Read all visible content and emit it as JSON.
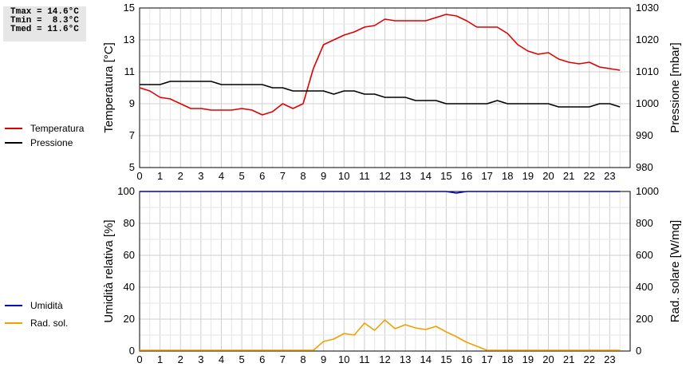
{
  "stats": {
    "tmax": "Tmax = 14.6°C",
    "tmin": "Tmin =  8.3°C",
    "tmed": "Tmed = 11.6°C"
  },
  "legend_top": [
    {
      "label": "Temperatura",
      "color": "#e00000"
    },
    {
      "label": "Pressione",
      "color": "#000000"
    }
  ],
  "legend_bottom": [
    {
      "label": "Umidità",
      "color": "#0000c0"
    },
    {
      "label": "Rad. sol.",
      "color": "#f0a000"
    }
  ],
  "chart_data": [
    {
      "type": "line",
      "xlim": [
        0,
        24
      ],
      "x_ticks": [
        0,
        1,
        2,
        3,
        4,
        5,
        6,
        7,
        8,
        9,
        10,
        11,
        12,
        13,
        14,
        15,
        16,
        17,
        18,
        19,
        20,
        21,
        22,
        23
      ],
      "ylabel": "Temperatura [°C]",
      "ylabel_right": "Pressione [mbar]",
      "ylim": [
        5,
        15
      ],
      "ylim_right": [
        980,
        1030
      ],
      "y_ticks": [
        5,
        7,
        9,
        11,
        13,
        15
      ],
      "y_ticks_right": [
        980,
        990,
        1000,
        1010,
        1020,
        1030
      ],
      "grid": true,
      "series": [
        {
          "name": "Temperatura",
          "axis": "left",
          "color": "#e00000",
          "x": [
            0,
            0.5,
            1,
            1.5,
            2,
            2.5,
            3,
            3.5,
            4,
            4.5,
            5,
            5.5,
            6,
            6.5,
            7,
            7.5,
            8,
            8.5,
            9,
            9.5,
            10,
            10.5,
            11,
            11.5,
            12,
            12.5,
            13,
            13.5,
            14,
            14.5,
            15,
            15.5,
            16,
            16.5,
            17,
            17.5,
            18,
            18.5,
            19,
            19.5,
            20,
            20.5,
            21,
            21.5,
            22,
            22.5,
            23,
            23.5
          ],
          "values": [
            10.0,
            9.8,
            9.4,
            9.3,
            9.0,
            8.7,
            8.7,
            8.6,
            8.6,
            8.6,
            8.7,
            8.6,
            8.3,
            8.5,
            9.0,
            8.7,
            9.0,
            11.2,
            12.7,
            13.0,
            13.3,
            13.5,
            13.8,
            13.9,
            14.3,
            14.2,
            14.2,
            14.2,
            14.2,
            14.4,
            14.6,
            14.5,
            14.2,
            13.8,
            13.8,
            13.8,
            13.4,
            12.7,
            12.3,
            12.1,
            12.2,
            11.8,
            11.6,
            11.5,
            11.6,
            11.3,
            11.2,
            11.1
          ]
        },
        {
          "name": "Pressione",
          "axis": "right",
          "color": "#000000",
          "x": [
            0,
            0.5,
            1,
            1.5,
            2,
            2.5,
            3,
            3.5,
            4,
            4.5,
            5,
            5.5,
            6,
            6.5,
            7,
            7.5,
            8,
            8.5,
            9,
            9.5,
            10,
            10.5,
            11,
            11.5,
            12,
            12.5,
            13,
            13.5,
            14,
            14.5,
            15,
            15.5,
            16,
            16.5,
            17,
            17.5,
            18,
            18.5,
            19,
            19.5,
            20,
            20.5,
            21,
            21.5,
            22,
            22.5,
            23,
            23.5
          ],
          "values": [
            1006,
            1006,
            1006,
            1007,
            1007,
            1007,
            1007,
            1007,
            1006,
            1006,
            1006,
            1006,
            1006,
            1005,
            1005,
            1004,
            1004,
            1004,
            1004,
            1003,
            1004,
            1004,
            1003,
            1003,
            1002,
            1002,
            1002,
            1001,
            1001,
            1001,
            1000,
            1000,
            1000,
            1000,
            1000,
            1001,
            1000,
            1000,
            1000,
            1000,
            1000,
            999,
            999,
            999,
            999,
            1000,
            1000,
            999
          ]
        }
      ]
    },
    {
      "type": "line",
      "xlim": [
        0,
        24
      ],
      "x_ticks": [
        0,
        1,
        2,
        3,
        4,
        5,
        6,
        7,
        8,
        9,
        10,
        11,
        12,
        13,
        14,
        15,
        16,
        17,
        18,
        19,
        20,
        21,
        22,
        23
      ],
      "ylabel": "Umidità relativa [%]",
      "ylabel_right": "Rad. solare [W/mq]",
      "ylim": [
        0,
        100
      ],
      "ylim_right": [
        0,
        1000
      ],
      "y_ticks": [
        0,
        20,
        40,
        60,
        80,
        100
      ],
      "y_ticks_right": [
        0,
        200,
        400,
        600,
        800,
        1000
      ],
      "grid": true,
      "series": [
        {
          "name": "Umidità",
          "axis": "left",
          "color": "#0000c0",
          "x": [
            0,
            1,
            2,
            3,
            4,
            5,
            6,
            7,
            8,
            9,
            10,
            11,
            12,
            13,
            14,
            15,
            15.5,
            16,
            17,
            18,
            19,
            20,
            21,
            22,
            23,
            23.5
          ],
          "values": [
            100,
            100,
            100,
            100,
            100,
            100,
            100,
            100,
            100,
            100,
            100,
            100,
            100,
            100,
            100,
            100,
            99,
            100,
            100,
            100,
            100,
            100,
            100,
            100,
            100,
            100
          ]
        },
        {
          "name": "Rad. sol.",
          "axis": "right",
          "color": "#f0a000",
          "x": [
            0,
            1,
            2,
            3,
            4,
            5,
            6,
            7,
            8,
            8.5,
            9,
            9.5,
            10,
            10.5,
            11,
            11.5,
            12,
            12.5,
            13,
            13.5,
            14,
            14.5,
            15,
            15.5,
            16,
            16.5,
            17,
            18,
            19,
            20,
            21,
            22,
            23,
            23.5
          ],
          "values": [
            5,
            5,
            5,
            5,
            5,
            5,
            5,
            5,
            5,
            5,
            60,
            75,
            110,
            100,
            175,
            130,
            195,
            140,
            165,
            145,
            135,
            155,
            120,
            90,
            55,
            30,
            5,
            5,
            5,
            5,
            5,
            5,
            5,
            5
          ]
        }
      ]
    }
  ]
}
